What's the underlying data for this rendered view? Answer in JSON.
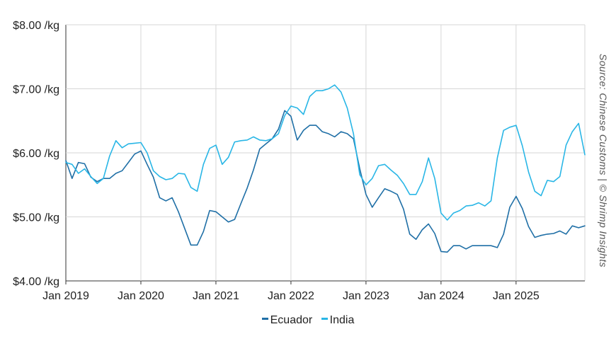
{
  "chart_data": {
    "type": "line",
    "ylim": [
      4,
      8
    ],
    "xlim": [
      "2019-01",
      "2025-12"
    ],
    "grid": true,
    "legend_position": "bottom-center",
    "y_ticks": [
      {
        "value": 4,
        "label": "$4.00 /kg"
      },
      {
        "value": 5,
        "label": "$5.00 /kg"
      },
      {
        "value": 6,
        "label": "$6.00 /kg"
      },
      {
        "value": 7,
        "label": "$7.00 /kg"
      },
      {
        "value": 8,
        "label": "$8.00 /kg"
      }
    ],
    "x_ticks": [
      {
        "value": "2019-01",
        "label": "Jan 2019"
      },
      {
        "value": "2020-01",
        "label": "Jan 2020"
      },
      {
        "value": "2021-01",
        "label": "Jan 2021"
      },
      {
        "value": "2022-01",
        "label": "Jan 2022"
      },
      {
        "value": "2023-01",
        "label": "Jan 2023"
      },
      {
        "value": "2024-01",
        "label": "Jan 2024"
      },
      {
        "value": "2025-01",
        "label": "Jan 2025"
      }
    ],
    "x": [
      "2019-01",
      "2019-02",
      "2019-03",
      "2019-04",
      "2019-05",
      "2019-06",
      "2019-07",
      "2019-08",
      "2019-09",
      "2019-10",
      "2019-11",
      "2019-12",
      "2020-01",
      "2020-02",
      "2020-03",
      "2020-04",
      "2020-05",
      "2020-06",
      "2020-07",
      "2020-08",
      "2020-09",
      "2020-10",
      "2020-11",
      "2020-12",
      "2021-01",
      "2021-02",
      "2021-03",
      "2021-04",
      "2021-05",
      "2021-06",
      "2021-07",
      "2021-08",
      "2021-09",
      "2021-10",
      "2021-11",
      "2021-12",
      "2022-01",
      "2022-02",
      "2022-03",
      "2022-04",
      "2022-05",
      "2022-06",
      "2022-07",
      "2022-08",
      "2022-09",
      "2022-10",
      "2022-11",
      "2022-12",
      "2023-01",
      "2023-02",
      "2023-03",
      "2023-04",
      "2023-05",
      "2023-06",
      "2023-07",
      "2023-08",
      "2023-09",
      "2023-10",
      "2023-11",
      "2023-12",
      "2024-01",
      "2024-02",
      "2024-03",
      "2024-04",
      "2024-05",
      "2024-06",
      "2024-07",
      "2024-08",
      "2024-09",
      "2024-10",
      "2024-11",
      "2024-12",
      "2025-01",
      "2025-02",
      "2025-03",
      "2025-04",
      "2025-05",
      "2025-06",
      "2025-07",
      "2025-08",
      "2025-09",
      "2025-10",
      "2025-11",
      "2025-12"
    ],
    "series": [
      {
        "name": "Ecuador",
        "color": "#1f6fa6",
        "values": [
          5.88,
          5.6,
          5.85,
          5.83,
          5.62,
          5.55,
          5.6,
          5.6,
          5.68,
          5.72,
          5.85,
          5.98,
          6.03,
          5.82,
          5.62,
          5.3,
          5.25,
          5.3,
          5.08,
          4.82,
          4.56,
          4.56,
          4.77,
          5.1,
          5.08,
          5.0,
          4.92,
          4.96,
          5.21,
          5.45,
          5.73,
          6.06,
          6.14,
          6.22,
          6.37,
          6.66,
          6.57,
          6.2,
          6.35,
          6.43,
          6.43,
          6.33,
          6.3,
          6.25,
          6.33,
          6.3,
          6.22,
          5.75,
          5.35,
          5.15,
          5.3,
          5.44,
          5.4,
          5.35,
          5.12,
          4.73,
          4.65,
          4.8,
          4.89,
          4.74,
          4.46,
          4.45,
          4.55,
          4.55,
          4.5,
          4.55,
          4.55,
          4.55,
          4.55,
          4.52,
          4.73,
          5.15,
          5.32,
          5.13,
          4.85,
          4.68,
          4.71,
          4.73,
          4.74,
          4.78,
          4.73,
          4.86,
          4.83,
          4.86
        ]
      },
      {
        "name": "India",
        "color": "#29b6e6",
        "values": [
          5.85,
          5.82,
          5.68,
          5.75,
          5.63,
          5.52,
          5.6,
          5.95,
          6.19,
          6.08,
          6.14,
          6.15,
          6.16,
          6.0,
          5.72,
          5.63,
          5.58,
          5.6,
          5.68,
          5.67,
          5.46,
          5.4,
          5.82,
          6.07,
          6.12,
          5.82,
          5.93,
          6.17,
          6.19,
          6.2,
          6.25,
          6.2,
          6.19,
          6.22,
          6.3,
          6.58,
          6.73,
          6.7,
          6.6,
          6.88,
          6.97,
          6.97,
          7.0,
          7.06,
          6.95,
          6.7,
          6.3,
          5.66,
          5.5,
          5.6,
          5.8,
          5.82,
          5.73,
          5.65,
          5.52,
          5.35,
          5.35,
          5.55,
          5.92,
          5.6,
          5.06,
          4.95,
          5.06,
          5.1,
          5.17,
          5.18,
          5.22,
          5.17,
          5.25,
          5.92,
          6.35,
          6.4,
          6.43,
          6.11,
          5.7,
          5.4,
          5.33,
          5.57,
          5.55,
          5.63,
          6.12,
          6.33,
          6.46,
          5.97
        ]
      }
    ]
  },
  "source_note": "Source: Chinese Customs | © Shrimp Insights"
}
